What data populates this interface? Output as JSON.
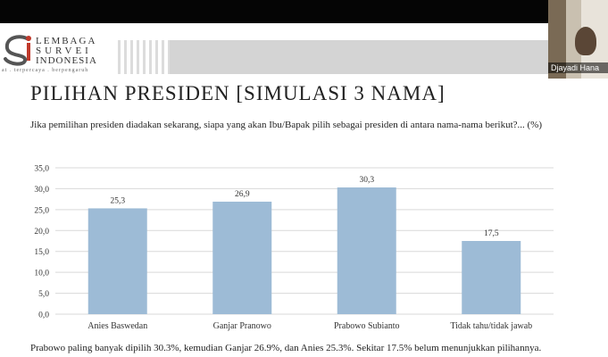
{
  "logo": {
    "line1": "LEMBAGA",
    "line2": "SURVEI",
    "line3": "INDONESIA",
    "tagline": "at . terpercaya . berpengaruh"
  },
  "video": {
    "participant_name": "Djayadi Hana"
  },
  "slide": {
    "title": "PILIHAN PRESIDEN [SIMULASI 3 NAMA]",
    "question": "Jika pemilihan presiden diadakan sekarang, siapa yang akan Ibu/Bapak pilih sebagai presiden di antara nama-nama berikut?... (%)",
    "note": "Prabowo paling banyak dipilih 30.3%, kemudian Ganjar 26.9%, dan Anies 25.3%. Sekitar 17.5% belum menunjukkan pilihannya."
  },
  "colors": {
    "bar": "#9dbbd6",
    "grid": "#d9d9d9",
    "header_band": "#d4d4d4"
  },
  "chart_data": {
    "type": "bar",
    "categories": [
      "Anies Baswedan",
      "Ganjar Pranowo",
      "Prabowo Subianto",
      "Tidak tahu/tidak jawab"
    ],
    "values": [
      25.3,
      26.9,
      30.3,
      17.5
    ],
    "value_labels": [
      "25,3",
      "26,9",
      "30,3",
      "17,5"
    ],
    "yticks": [
      "0,0",
      "5,0",
      "10,0",
      "15,0",
      "20,0",
      "25,0",
      "30,0",
      "35,0"
    ],
    "ylim": [
      0,
      35
    ],
    "grid": true,
    "legend": "none"
  }
}
